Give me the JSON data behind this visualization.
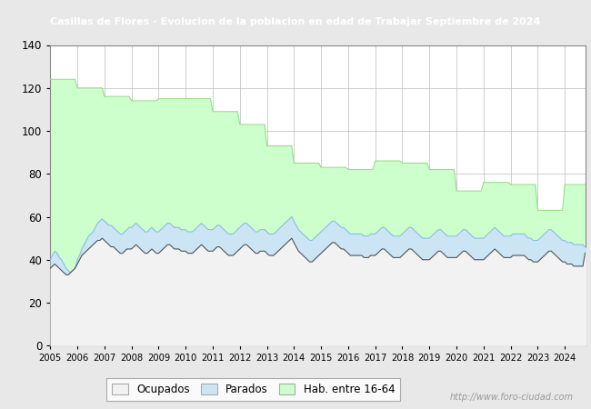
{
  "title": "Casillas de Flores - Evolucion de la poblacion en edad de Trabajar Septiembre de 2024",
  "title_bg": "#4a7fd4",
  "title_color": "white",
  "fig_bg": "#e8e8e8",
  "plot_bg": "#ffffff",
  "ylim": [
    0,
    140
  ],
  "yticks": [
    0,
    20,
    40,
    60,
    80,
    100,
    120,
    140
  ],
  "x_start_year": 2005,
  "watermark": "http://www.foro-ciudad.com",
  "legend_labels": [
    "Ocupados",
    "Parados",
    "Hab. entre 16-64"
  ],
  "color_ocupados_fill": "#f2f2f2",
  "color_ocupados_line": "#555555",
  "color_parados_fill": "#cce5f5",
  "color_parados_line": "#88bbee",
  "color_hab_fill": "#ccffcc",
  "color_hab_line": "#99dd88",
  "hab_annual": [
    124,
    120,
    116,
    114,
    115,
    115,
    109,
    103,
    93,
    85,
    83,
    82,
    86,
    85,
    82,
    72,
    76,
    75,
    63,
    75
  ],
  "parados_monthly": [
    40,
    42,
    44,
    43,
    41,
    40,
    38,
    36,
    35,
    34,
    35,
    36,
    40,
    42,
    45,
    47,
    49,
    51,
    52,
    53,
    55,
    57,
    58,
    59,
    58,
    57,
    56,
    56,
    55,
    54,
    53,
    52,
    52,
    53,
    54,
    55,
    55,
    56,
    57,
    56,
    55,
    54,
    53,
    53,
    54,
    55,
    54,
    53,
    53,
    54,
    55,
    56,
    57,
    57,
    56,
    55,
    55,
    55,
    54,
    54,
    54,
    53,
    53,
    53,
    54,
    55,
    56,
    57,
    56,
    55,
    54,
    54,
    54,
    55,
    56,
    56,
    55,
    54,
    53,
    52,
    52,
    52,
    53,
    54,
    55,
    56,
    57,
    57,
    56,
    55,
    54,
    53,
    53,
    54,
    54,
    54,
    53,
    52,
    52,
    52,
    53,
    54,
    55,
    56,
    57,
    58,
    59,
    60,
    58,
    56,
    54,
    53,
    52,
    51,
    50,
    49,
    49,
    50,
    51,
    52,
    53,
    54,
    55,
    56,
    57,
    58,
    58,
    57,
    56,
    55,
    55,
    54,
    53,
    52,
    52,
    52,
    52,
    52,
    52,
    51,
    51,
    51,
    52,
    52,
    52,
    53,
    54,
    55,
    55,
    54,
    53,
    52,
    51,
    51,
    51,
    51,
    52,
    53,
    54,
    55,
    55,
    54,
    53,
    52,
    51,
    50,
    50,
    50,
    50,
    51,
    52,
    53,
    54,
    54,
    53,
    52,
    51,
    51,
    51,
    51,
    51,
    52,
    53,
    54,
    54,
    53,
    52,
    51,
    50,
    50,
    50,
    50,
    50,
    51,
    52,
    53,
    54,
    55,
    54,
    53,
    52,
    51,
    51,
    51,
    51,
    52,
    52,
    52,
    52,
    52,
    52,
    51,
    50,
    50,
    49,
    49,
    49,
    50,
    51,
    52,
    53,
    54,
    54,
    53,
    52,
    51,
    50,
    49,
    49,
    48,
    48,
    48,
    47,
    47,
    47,
    47,
    47,
    46,
    45,
    46
  ],
  "ocupados_monthly": [
    36,
    37,
    38,
    37,
    36,
    35,
    34,
    33,
    33,
    34,
    35,
    36,
    38,
    40,
    42,
    43,
    44,
    45,
    46,
    47,
    48,
    49,
    49,
    50,
    49,
    48,
    47,
    46,
    46,
    45,
    44,
    43,
    43,
    44,
    45,
    45,
    45,
    46,
    47,
    46,
    45,
    44,
    43,
    43,
    44,
    45,
    44,
    43,
    43,
    44,
    45,
    46,
    47,
    47,
    46,
    45,
    45,
    45,
    44,
    44,
    44,
    43,
    43,
    43,
    44,
    45,
    46,
    47,
    46,
    45,
    44,
    44,
    44,
    45,
    46,
    46,
    45,
    44,
    43,
    42,
    42,
    42,
    43,
    44,
    45,
    46,
    47,
    47,
    46,
    45,
    44,
    43,
    43,
    44,
    44,
    44,
    43,
    42,
    42,
    42,
    43,
    44,
    45,
    46,
    47,
    48,
    49,
    50,
    48,
    46,
    44,
    43,
    42,
    41,
    40,
    39,
    39,
    40,
    41,
    42,
    43,
    44,
    45,
    46,
    47,
    48,
    48,
    47,
    46,
    45,
    45,
    44,
    43,
    42,
    42,
    42,
    42,
    42,
    42,
    41,
    41,
    41,
    42,
    42,
    42,
    43,
    44,
    45,
    45,
    44,
    43,
    42,
    41,
    41,
    41,
    41,
    42,
    43,
    44,
    45,
    45,
    44,
    43,
    42,
    41,
    40,
    40,
    40,
    40,
    41,
    42,
    43,
    44,
    44,
    43,
    42,
    41,
    41,
    41,
    41,
    41,
    42,
    43,
    44,
    44,
    43,
    42,
    41,
    40,
    40,
    40,
    40,
    40,
    41,
    42,
    43,
    44,
    45,
    44,
    43,
    42,
    41,
    41,
    41,
    41,
    42,
    42,
    42,
    42,
    42,
    42,
    41,
    40,
    40,
    39,
    39,
    39,
    40,
    41,
    42,
    43,
    44,
    44,
    43,
    42,
    41,
    40,
    39,
    39,
    38,
    38,
    38,
    37,
    37,
    37,
    37,
    37,
    43,
    44,
    45
  ]
}
